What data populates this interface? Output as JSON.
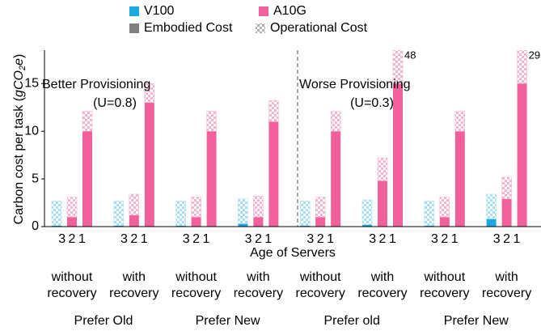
{
  "chart_data": {
    "type": "bar",
    "stacked": true,
    "series": [
      {
        "name": "V100",
        "color": "#1ba9e1",
        "light": "#a8def3"
      },
      {
        "name": "A10G",
        "color": "#f0609a",
        "light": "#f7b3cf"
      }
    ],
    "components": [
      {
        "name": "Embodied Cost",
        "color": "#808080"
      },
      {
        "name": "Operational Cost",
        "color": "#b0b0b0"
      }
    ],
    "ylabel": [
      "Carbon cost per task (",
      "gCO",
      "2",
      "e",
      ")"
    ],
    "xlabel": "Age of Servers",
    "ylim": [
      0,
      18.5
    ],
    "yticks": [
      0,
      5,
      10,
      15
    ],
    "ages": [
      "3",
      "2",
      "1"
    ],
    "panels": [
      {
        "title": "Better Provisioning",
        "subtitle": "(U=0.8)"
      },
      {
        "title": "Worse Provisioning",
        "subtitle": "(U=0.3)"
      }
    ],
    "group_names": [
      "Prefer Old",
      "Prefer New",
      "Prefer old",
      "Prefer New"
    ],
    "groups": [
      {
        "line1": "without",
        "line2": "recovery",
        "bars": [
          {
            "series": 0,
            "embodied": 0.1,
            "operational": 2.6
          },
          {
            "series": 1,
            "embodied": 1.0,
            "operational": 2.1
          },
          {
            "series": 1,
            "embodied": 10,
            "operational": 2.1
          }
        ]
      },
      {
        "line1": "with",
        "line2": "recovery",
        "bars": [
          {
            "series": 0,
            "embodied": 0.1,
            "operational": 2.6
          },
          {
            "series": 1,
            "embodied": 1.2,
            "operational": 2.2
          },
          {
            "series": 1,
            "embodied": 13,
            "operational": 2.0
          }
        ]
      },
      {
        "line1": "without",
        "line2": "recovery",
        "bars": [
          {
            "series": 0,
            "embodied": 0.1,
            "operational": 2.6
          },
          {
            "series": 1,
            "embodied": 1.0,
            "operational": 2.1
          },
          {
            "series": 1,
            "embodied": 10,
            "operational": 2.1
          }
        ]
      },
      {
        "line1": "with",
        "line2": "recovery",
        "bars": [
          {
            "series": 0,
            "embodied": 0.3,
            "operational": 2.6
          },
          {
            "series": 1,
            "embodied": 1.0,
            "operational": 2.2
          },
          {
            "series": 1,
            "embodied": 11,
            "operational": 2.2
          }
        ]
      },
      {
        "line1": "without",
        "line2": "recovery",
        "bars": [
          {
            "series": 0,
            "embodied": 0.1,
            "operational": 2.6
          },
          {
            "series": 1,
            "embodied": 1.0,
            "operational": 2.1
          },
          {
            "series": 1,
            "embodied": 10,
            "operational": 2.1
          }
        ]
      },
      {
        "line1": "with",
        "line2": "recovery",
        "bars": [
          {
            "series": 0,
            "embodied": 0.2,
            "operational": 2.6
          },
          {
            "series": 1,
            "embodied": 4.8,
            "operational": 2.4
          },
          {
            "series": 1,
            "embodied": 15,
            "operational": 33,
            "total_label": "48"
          }
        ]
      },
      {
        "line1": "without",
        "line2": "recovery",
        "bars": [
          {
            "series": 0,
            "embodied": 0.1,
            "operational": 2.6
          },
          {
            "series": 1,
            "embodied": 1.0,
            "operational": 2.1
          },
          {
            "series": 1,
            "embodied": 10,
            "operational": 2.1
          }
        ]
      },
      {
        "line1": "with",
        "line2": "recovery",
        "bars": [
          {
            "series": 0,
            "embodied": 0.8,
            "operational": 2.6
          },
          {
            "series": 1,
            "embodied": 2.9,
            "operational": 2.3
          },
          {
            "series": 1,
            "embodied": 15,
            "operational": 14,
            "total_label": "29"
          }
        ]
      }
    ]
  }
}
